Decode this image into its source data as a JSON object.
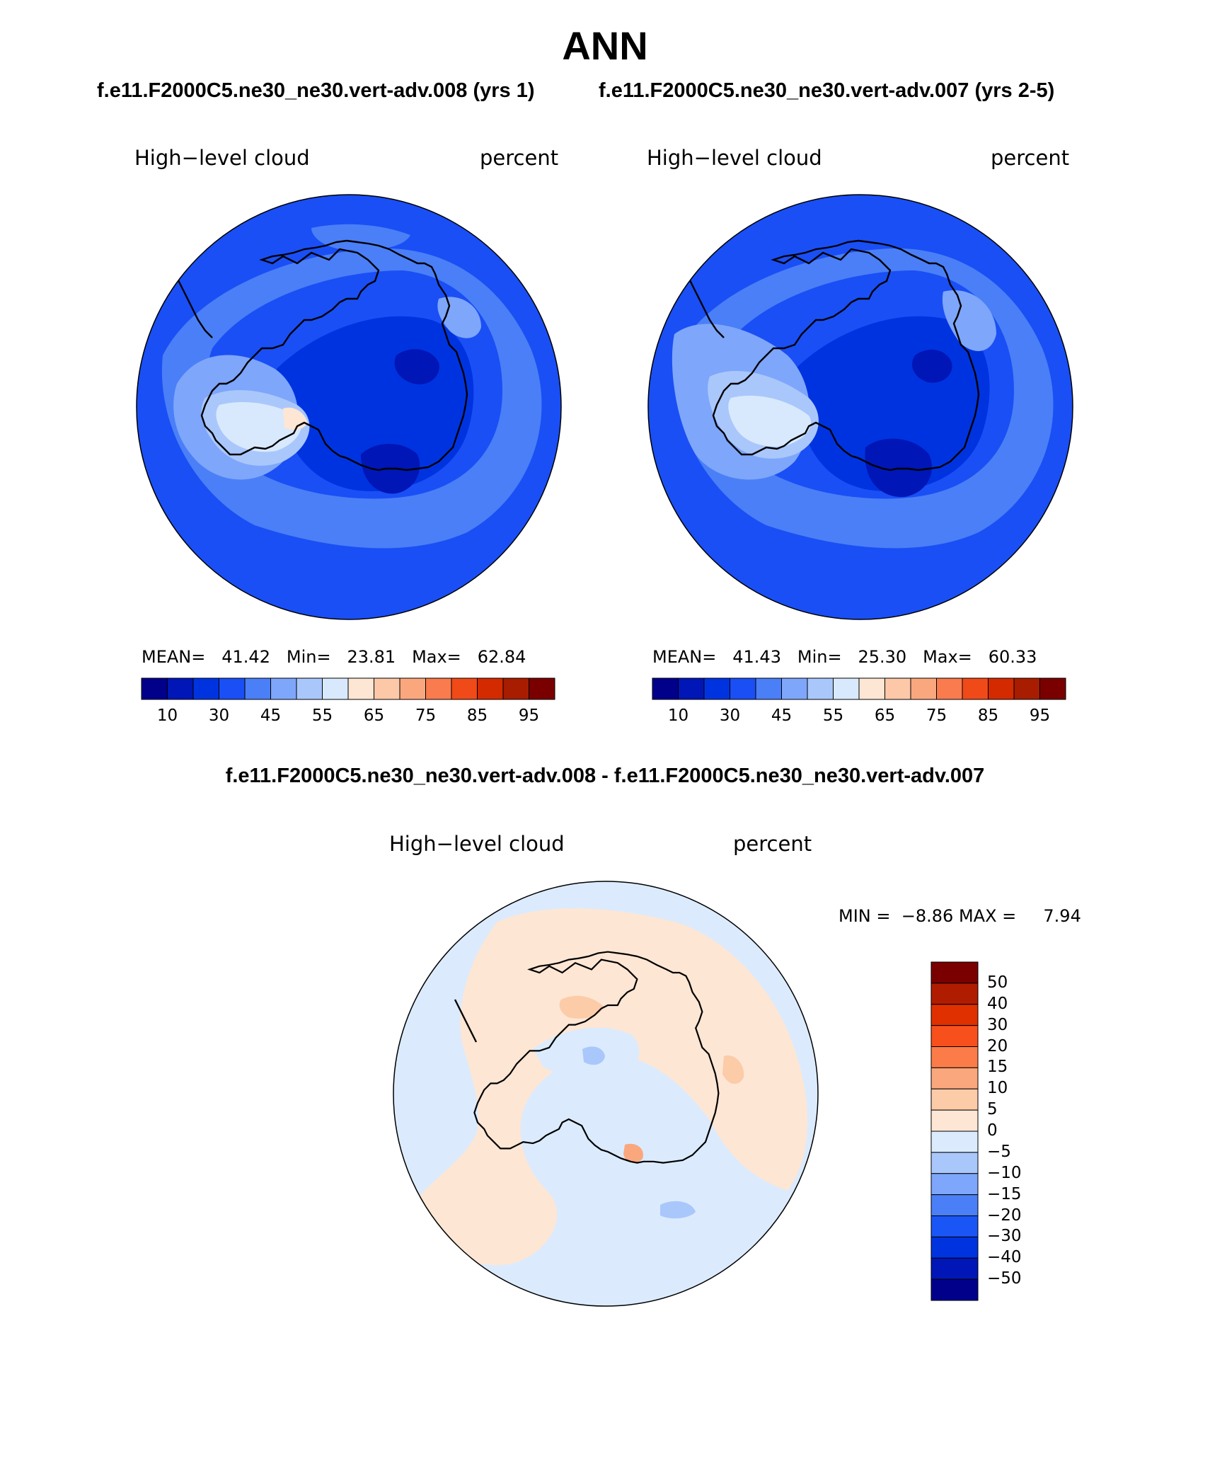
{
  "main_title": "ANN",
  "top_titles": {
    "left": "f.e11.F2000C5.ne30_ne30.vert-adv.008 (yrs 1)",
    "right": "f.e11.F2000C5.ne30_ne30.vert-adv.007 (yrs 2-5)"
  },
  "diff_title": "f.e11.F2000C5.ne30_ne30.vert-adv.008 - f.e11.F2000C5.ne30_ne30.vert-adv.007",
  "panels": [
    {
      "variable": "High−level cloud",
      "units": "percent",
      "mean_label": "MEAN=",
      "mean": "41.42",
      "min_label": "Min=",
      "min": "23.81",
      "max_label": "Max=",
      "max": "62.84"
    },
    {
      "variable": "High−level cloud",
      "units": "percent",
      "mean_label": "MEAN=",
      "mean": "41.43",
      "min_label": "Min=",
      "min": "25.30",
      "max_label": "Max=",
      "max": "60.33"
    }
  ],
  "diff_panel": {
    "variable": "High−level cloud",
    "units": "percent",
    "min_label": "MIN =",
    "min": "−8.86",
    "max_label": "MAX =",
    "max": "7.94"
  },
  "abs_colorbar": {
    "colors": [
      "#00008b",
      "#0016b6",
      "#0033e0",
      "#1a4ff5",
      "#4a7ff7",
      "#7ea6fa",
      "#aac7fc",
      "#d8e9fd",
      "#fde6d4",
      "#fcc8a8",
      "#fba77e",
      "#f97b4e",
      "#f04a18",
      "#d42a00",
      "#a81c00",
      "#7a0000"
    ],
    "labels": [
      "10",
      "30",
      "45",
      "55",
      "65",
      "75",
      "85",
      "95"
    ]
  },
  "diff_colorbar": {
    "colors": [
      "#7a0000",
      "#b01c00",
      "#e03000",
      "#f7501c",
      "#fb7c48",
      "#fba77e",
      "#fccba8",
      "#fde6d4",
      "#dbebfd",
      "#aac7fc",
      "#7ea6fa",
      "#4a7ff7",
      "#1a55f5",
      "#0033e0",
      "#0016b6",
      "#00008b"
    ],
    "labels": [
      "50",
      "40",
      "30",
      "20",
      "15",
      "10",
      "5",
      "0",
      "−5",
      "−10",
      "−15",
      "−20",
      "−30",
      "−40",
      "−50"
    ]
  },
  "map_colors": {
    "ocean_base": "#1a4ff5",
    "diff_base": "#dbebfd",
    "coast": "#000000"
  }
}
